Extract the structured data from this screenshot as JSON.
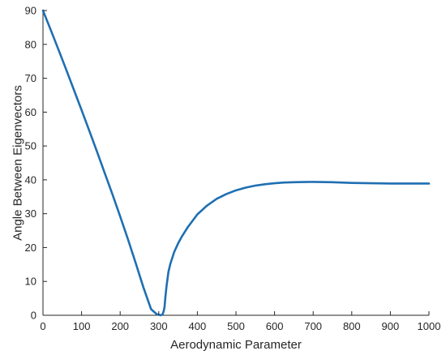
{
  "chart_data": {
    "type": "line",
    "title": "",
    "xlabel": "Aerodynamic Parameter",
    "ylabel": "Angle Between Eigenvectors",
    "xlim": [
      0,
      1000
    ],
    "ylim": [
      0,
      90
    ],
    "xticks": [
      0,
      100,
      200,
      300,
      400,
      500,
      600,
      700,
      800,
      900,
      1000
    ],
    "yticks": [
      0,
      10,
      20,
      30,
      40,
      50,
      60,
      70,
      80,
      90
    ],
    "grid": false,
    "legend": "none",
    "series": [
      {
        "color": "#1f6fb2",
        "x": [
          0,
          20,
          40,
          60,
          80,
          100,
          120,
          140,
          160,
          180,
          200,
          220,
          240,
          260,
          280,
          295,
          305,
          310,
          313,
          315,
          317,
          320,
          325,
          330,
          340,
          350,
          360,
          375,
          400,
          425,
          450,
          475,
          500,
          525,
          550,
          575,
          600,
          625,
          650,
          700,
          750,
          800,
          850,
          900,
          950,
          1000
        ],
        "y": [
          90,
          84.3,
          78.5,
          72.6,
          66.6,
          60.6,
          54.5,
          48.3,
          42,
          35.7,
          29.2,
          22.5,
          15.5,
          8.3,
          1.8,
          0.3,
          0,
          0.3,
          1.3,
          2.5,
          5.2,
          8.5,
          12.8,
          15.2,
          18.7,
          21.2,
          23.3,
          26,
          29.8,
          32.4,
          34.4,
          35.8,
          36.9,
          37.7,
          38.3,
          38.7,
          39,
          39.2,
          39.3,
          39.4,
          39.3,
          39.1,
          39,
          38.9,
          38.9,
          38.9
        ]
      }
    ]
  }
}
